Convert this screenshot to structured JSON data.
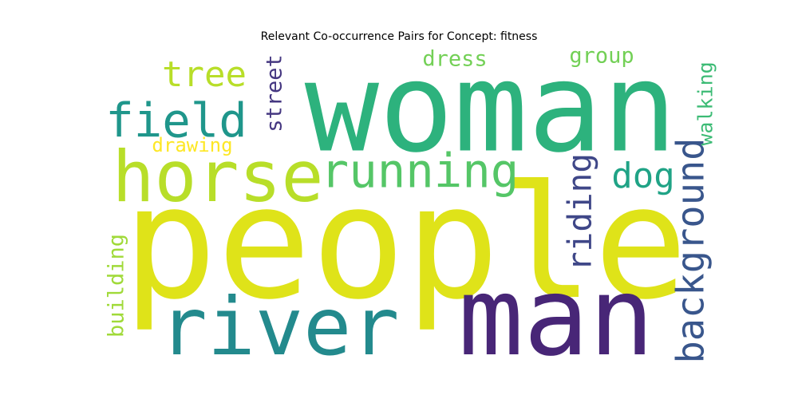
{
  "title": "Relevant Co-occurrence Pairs for Concept: fitness",
  "words": [
    {
      "text": "people",
      "color": "#dfe319",
      "orientation": "horizontal"
    },
    {
      "text": "woman",
      "color": "#2db27d",
      "orientation": "horizontal"
    },
    {
      "text": "man",
      "color": "#482677",
      "orientation": "horizontal"
    },
    {
      "text": "river",
      "color": "#238a8d",
      "orientation": "horizontal"
    },
    {
      "text": "horse",
      "color": "#b8de29",
      "orientation": "horizontal"
    },
    {
      "text": "running",
      "color": "#55c667",
      "orientation": "horizontal"
    },
    {
      "text": "field",
      "color": "#1f968b",
      "orientation": "horizontal"
    },
    {
      "text": "tree",
      "color": "#b8de29",
      "orientation": "horizontal"
    },
    {
      "text": "background",
      "color": "#39568c",
      "orientation": "vertical"
    },
    {
      "text": "riding",
      "color": "#3f4788",
      "orientation": "vertical"
    },
    {
      "text": "dog",
      "color": "#20a386",
      "orientation": "horizontal"
    },
    {
      "text": "street",
      "color": "#453781",
      "orientation": "vertical"
    },
    {
      "text": "building",
      "color": "#a0da39",
      "orientation": "vertical"
    },
    {
      "text": "dress",
      "color": "#73d056",
      "orientation": "horizontal"
    },
    {
      "text": "group",
      "color": "#73d056",
      "orientation": "horizontal"
    },
    {
      "text": "walking",
      "color": "#3cbb75",
      "orientation": "vertical"
    },
    {
      "text": "drawing",
      "color": "#fde725",
      "orientation": "horizontal"
    }
  ]
}
